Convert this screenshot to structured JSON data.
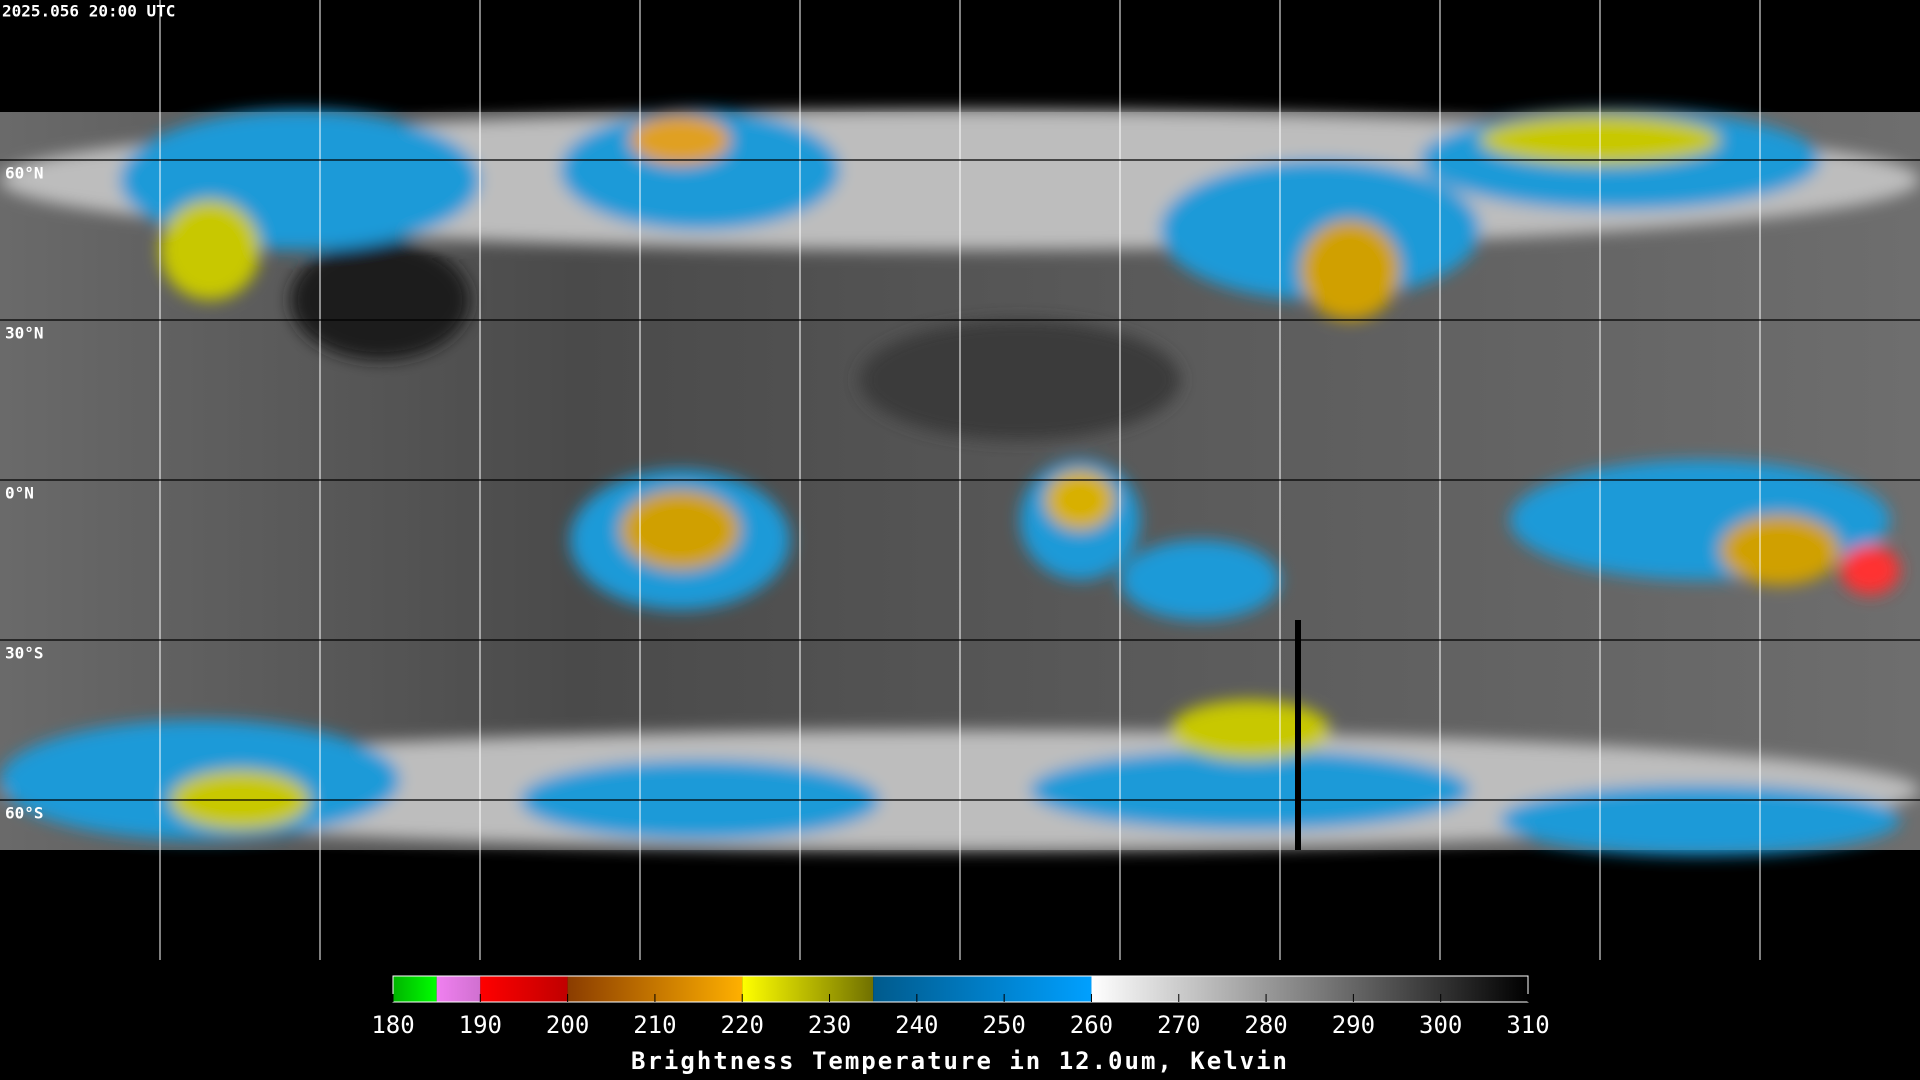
{
  "map": {
    "timestamp": "2025.056 20:00 UTC",
    "latitude_labels": [
      "60°N",
      "30°N",
      "0°N",
      "30°S",
      "60°S"
    ]
  },
  "colorbar": {
    "title": "Brightness Temperature in 12.0um, Kelvin",
    "range": [
      180,
      310
    ],
    "ticks": [
      180,
      190,
      200,
      210,
      220,
      230,
      240,
      250,
      260,
      270,
      280,
      290,
      300,
      310
    ],
    "segments": [
      {
        "from": 180,
        "to": 185,
        "colors": [
          "#00b400",
          "#00ff00"
        ]
      },
      {
        "from": 185,
        "to": 190,
        "colors": [
          "#f080f0",
          "#d070d0"
        ]
      },
      {
        "from": 190,
        "to": 200,
        "colors": [
          "#ff0000",
          "#c00000"
        ]
      },
      {
        "from": 200,
        "to": 220,
        "colors": [
          "#8a3c00",
          "#ffb000"
        ]
      },
      {
        "from": 220,
        "to": 235,
        "colors": [
          "#ffff00",
          "#707000"
        ]
      },
      {
        "from": 235,
        "to": 260,
        "colors": [
          "#005a8c",
          "#00a0ff"
        ]
      },
      {
        "from": 260,
        "to": 310,
        "colors": [
          "#ffffff",
          "#000000"
        ]
      }
    ]
  }
}
